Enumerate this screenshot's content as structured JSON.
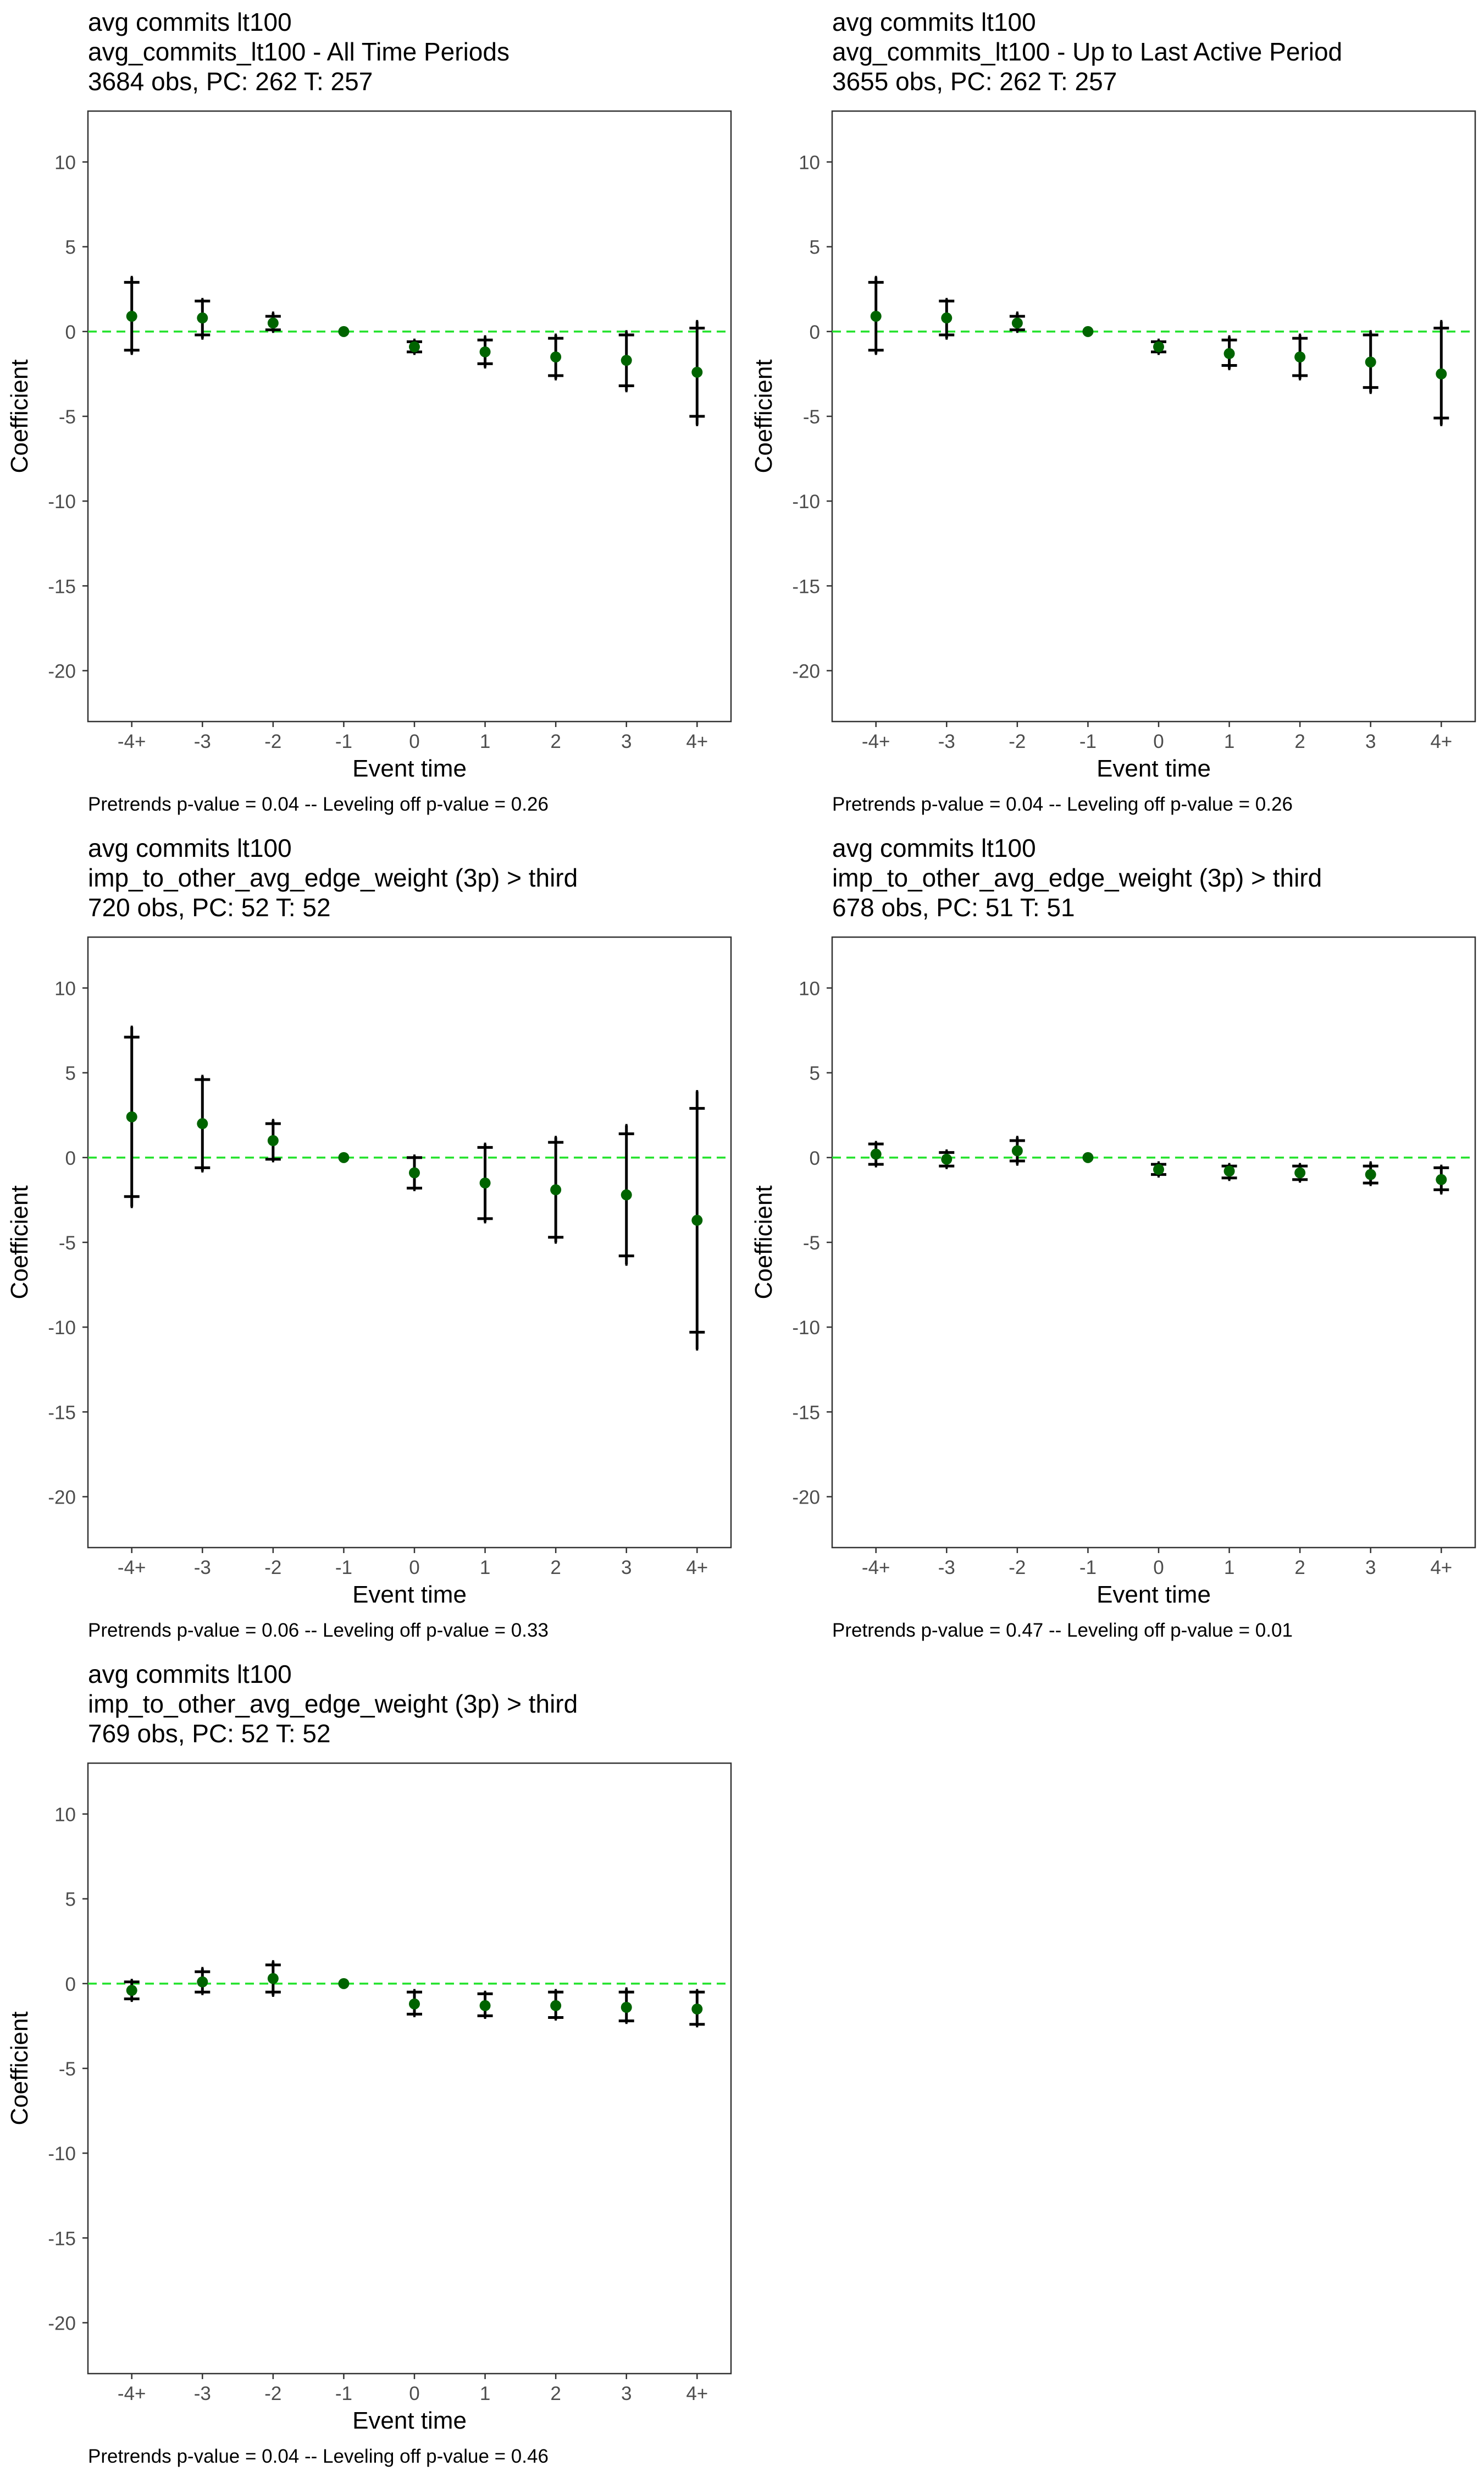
{
  "figure": {
    "y_axis_label": "Coefficient",
    "x_axis_label": "Event time"
  },
  "chart_data": [
    {
      "type": "scatter",
      "title": [
        "avg commits lt100",
        "avg_commits_lt100 - All Time Periods",
        "3684 obs, PC: 262 T: 257"
      ],
      "xlabel": "Event time",
      "ylabel": "Coefficient",
      "categories": [
        "-4+",
        "-3",
        "-2",
        "-1",
        "0",
        "1",
        "2",
        "3",
        "4+"
      ],
      "ylim": [
        -23,
        13
      ],
      "yticks": [
        10,
        5,
        0,
        -5,
        -10,
        -15,
        -20
      ],
      "reference_line": 0,
      "values": [
        0.9,
        0.8,
        0.5,
        0.0,
        -0.9,
        -1.2,
        -1.5,
        -1.7,
        -2.4
      ],
      "ci_inner": [
        [
          -1.1,
          2.9
        ],
        [
          -0.2,
          1.8
        ],
        [
          0.1,
          0.9
        ],
        [
          0.0,
          0.0
        ],
        [
          -1.2,
          -0.6
        ],
        [
          -1.9,
          -0.5
        ],
        [
          -2.6,
          -0.4
        ],
        [
          -3.2,
          -0.2
        ],
        [
          -5.0,
          0.2
        ]
      ],
      "ci_outer": [
        [
          -1.3,
          3.2
        ],
        [
          -0.4,
          1.9
        ],
        [
          0.0,
          1.1
        ],
        [
          0.0,
          0.0
        ],
        [
          -1.3,
          -0.5
        ],
        [
          -2.1,
          -0.3
        ],
        [
          -2.8,
          -0.2
        ],
        [
          -3.5,
          0.0
        ],
        [
          -5.5,
          0.6
        ]
      ],
      "footnote": "Pretrends p-value = 0.04 -- Leveling off p-value = 0.26"
    },
    {
      "type": "scatter",
      "title": [
        "avg commits lt100",
        "avg_commits_lt100 - Up to Last Active Period",
        "3655 obs, PC: 262 T: 257"
      ],
      "xlabel": "Event time",
      "ylabel": "Coefficient",
      "categories": [
        "-4+",
        "-3",
        "-2",
        "-1",
        "0",
        "1",
        "2",
        "3",
        "4+"
      ],
      "ylim": [
        -23,
        13
      ],
      "yticks": [
        10,
        5,
        0,
        -5,
        -10,
        -15,
        -20
      ],
      "reference_line": 0,
      "values": [
        0.9,
        0.8,
        0.5,
        0.0,
        -0.9,
        -1.3,
        -1.5,
        -1.8,
        -2.5
      ],
      "ci_inner": [
        [
          -1.1,
          2.9
        ],
        [
          -0.2,
          1.8
        ],
        [
          0.1,
          0.9
        ],
        [
          0.0,
          0.0
        ],
        [
          -1.2,
          -0.6
        ],
        [
          -2.0,
          -0.5
        ],
        [
          -2.6,
          -0.4
        ],
        [
          -3.3,
          -0.2
        ],
        [
          -5.1,
          0.2
        ]
      ],
      "ci_outer": [
        [
          -1.3,
          3.2
        ],
        [
          -0.4,
          1.9
        ],
        [
          0.0,
          1.1
        ],
        [
          0.0,
          0.0
        ],
        [
          -1.3,
          -0.5
        ],
        [
          -2.2,
          -0.3
        ],
        [
          -2.8,
          -0.2
        ],
        [
          -3.6,
          0.0
        ],
        [
          -5.5,
          0.6
        ]
      ],
      "footnote": "Pretrends p-value = 0.04 -- Leveling off p-value = 0.26"
    },
    {
      "type": "scatter",
      "title": [
        "avg commits lt100",
        "imp_to_other_avg_edge_weight (3p) > third",
        "720 obs, PC: 52 T: 52"
      ],
      "xlabel": "Event time",
      "ylabel": "Coefficient",
      "categories": [
        "-4+",
        "-3",
        "-2",
        "-1",
        "0",
        "1",
        "2",
        "3",
        "4+"
      ],
      "ylim": [
        -23,
        13
      ],
      "yticks": [
        10,
        5,
        0,
        -5,
        -10,
        -15,
        -20
      ],
      "reference_line": 0,
      "values": [
        2.4,
        2.0,
        1.0,
        0.0,
        -0.9,
        -1.5,
        -1.9,
        -2.2,
        -3.7
      ],
      "ci_inner": [
        [
          -2.3,
          7.1
        ],
        [
          -0.6,
          4.6
        ],
        [
          -0.1,
          2.0
        ],
        [
          0.0,
          0.0
        ],
        [
          -1.8,
          0.0
        ],
        [
          -3.6,
          0.6
        ],
        [
          -4.7,
          0.9
        ],
        [
          -5.8,
          1.4
        ],
        [
          -10.3,
          2.9
        ]
      ],
      "ci_outer": [
        [
          -2.9,
          7.7
        ],
        [
          -0.8,
          4.8
        ],
        [
          -0.2,
          2.2
        ],
        [
          0.0,
          0.0
        ],
        [
          -1.9,
          0.1
        ],
        [
          -3.8,
          0.8
        ],
        [
          -5.0,
          1.2
        ],
        [
          -6.3,
          1.9
        ],
        [
          -11.3,
          3.9
        ]
      ],
      "footnote": "Pretrends p-value = 0.06 -- Leveling off p-value = 0.33"
    },
    {
      "type": "scatter",
      "title": [
        "avg commits lt100",
        "imp_to_other_avg_edge_weight (3p) > third",
        "678 obs, PC: 51 T: 51"
      ],
      "xlabel": "Event time",
      "ylabel": "Coefficient",
      "categories": [
        "-4+",
        "-3",
        "-2",
        "-1",
        "0",
        "1",
        "2",
        "3",
        "4+"
      ],
      "ylim": [
        -23,
        13
      ],
      "yticks": [
        10,
        5,
        0,
        -5,
        -10,
        -15,
        -20
      ],
      "reference_line": 0,
      "values": [
        0.2,
        -0.1,
        0.4,
        0.0,
        -0.7,
        -0.8,
        -0.9,
        -1.0,
        -1.3
      ],
      "ci_inner": [
        [
          -0.4,
          0.8
        ],
        [
          -0.5,
          0.3
        ],
        [
          -0.2,
          1.0
        ],
        [
          0.0,
          0.0
        ],
        [
          -1.0,
          -0.4
        ],
        [
          -1.2,
          -0.5
        ],
        [
          -1.3,
          -0.5
        ],
        [
          -1.5,
          -0.5
        ],
        [
          -1.9,
          -0.6
        ]
      ],
      "ci_outer": [
        [
          -0.5,
          0.9
        ],
        [
          -0.6,
          0.4
        ],
        [
          -0.4,
          1.2
        ],
        [
          0.0,
          0.0
        ],
        [
          -1.1,
          -0.3
        ],
        [
          -1.3,
          -0.4
        ],
        [
          -1.4,
          -0.4
        ],
        [
          -1.6,
          -0.3
        ],
        [
          -2.1,
          -0.5
        ]
      ],
      "footnote": "Pretrends p-value = 0.47 -- Leveling off p-value = 0.01"
    },
    {
      "type": "scatter",
      "title": [
        "avg commits lt100",
        "imp_to_other_avg_edge_weight (3p) > third",
        "769 obs, PC: 52 T: 52"
      ],
      "xlabel": "Event time",
      "ylabel": "Coefficient",
      "categories": [
        "-4+",
        "-3",
        "-2",
        "-1",
        "0",
        "1",
        "2",
        "3",
        "4+"
      ],
      "ylim": [
        -23,
        13
      ],
      "yticks": [
        10,
        5,
        0,
        -5,
        -10,
        -15,
        -20
      ],
      "reference_line": 0,
      "values": [
        -0.4,
        0.1,
        0.3,
        0.0,
        -1.2,
        -1.3,
        -1.3,
        -1.4,
        -1.5
      ],
      "ci_inner": [
        [
          -0.9,
          0.1
        ],
        [
          -0.5,
          0.7
        ],
        [
          -0.5,
          1.1
        ],
        [
          0.0,
          0.0
        ],
        [
          -1.8,
          -0.5
        ],
        [
          -1.9,
          -0.6
        ],
        [
          -2.0,
          -0.5
        ],
        [
          -2.2,
          -0.5
        ],
        [
          -2.4,
          -0.5
        ]
      ],
      "ci_outer": [
        [
          -1.0,
          0.2
        ],
        [
          -0.6,
          0.9
        ],
        [
          -0.7,
          1.3
        ],
        [
          0.0,
          0.0
        ],
        [
          -1.9,
          -0.4
        ],
        [
          -2.0,
          -0.5
        ],
        [
          -2.1,
          -0.4
        ],
        [
          -2.3,
          -0.3
        ],
        [
          -2.5,
          -0.4
        ]
      ],
      "footnote": "Pretrends p-value = 0.04 -- Leveling off p-value = 0.46"
    }
  ],
  "colors": {
    "point": "#006400",
    "errorbar": "#000000",
    "zero_line": "#22e22b",
    "axis_text": "#4d4d4d",
    "panel_border": "#333333"
  }
}
